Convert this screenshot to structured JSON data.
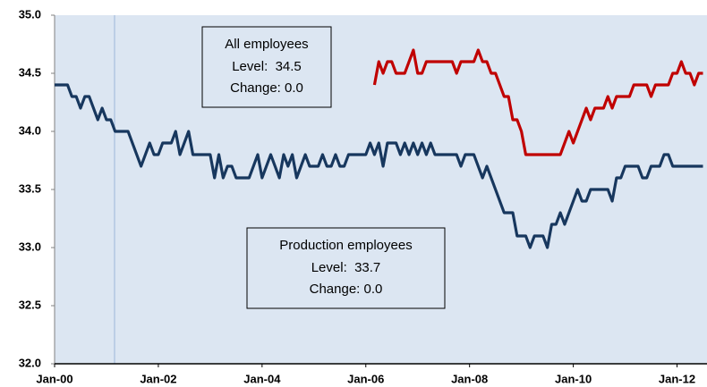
{
  "chart_data": {
    "type": "line",
    "categories": [
      "Jan-00",
      null,
      null,
      null,
      null,
      null,
      null,
      null,
      null,
      null,
      null,
      null,
      null,
      null,
      null,
      null,
      null,
      null,
      null,
      null,
      null,
      null,
      null,
      null,
      "Jan-02",
      null,
      null,
      null,
      null,
      null,
      null,
      null,
      null,
      null,
      null,
      null,
      null,
      null,
      null,
      null,
      null,
      null,
      null,
      null,
      null,
      null,
      null,
      null,
      "Jan-04",
      null,
      null,
      null,
      null,
      null,
      null,
      null,
      null,
      null,
      null,
      null,
      null,
      null,
      null,
      null,
      null,
      null,
      null,
      null,
      null,
      null,
      null,
      null,
      "Jan-06",
      null,
      null,
      null,
      null,
      null,
      null,
      null,
      null,
      null,
      null,
      null,
      null,
      null,
      null,
      null,
      null,
      null,
      null,
      null,
      null,
      null,
      null,
      null,
      "Jan-08",
      null,
      null,
      null,
      null,
      null,
      null,
      null,
      null,
      null,
      null,
      null,
      null,
      null,
      null,
      null,
      null,
      null,
      null,
      null,
      null,
      null,
      null,
      null,
      "Jan-10",
      null,
      null,
      null,
      null,
      null,
      null,
      null,
      null,
      null,
      null,
      null,
      null,
      null,
      null,
      null,
      null,
      null,
      null,
      null,
      null,
      null,
      null,
      null,
      "Jan-12",
      null,
      null,
      null,
      null,
      null,
      null
    ],
    "series": [
      {
        "name": "Production employees",
        "color": "#17375e",
        "values": [
          34.4,
          34.4,
          34.4,
          34.4,
          34.3,
          34.3,
          34.2,
          34.3,
          34.3,
          34.2,
          34.1,
          34.2,
          34.1,
          34.1,
          34.0,
          34.0,
          34.0,
          34.0,
          33.9,
          33.8,
          33.7,
          33.8,
          33.9,
          33.8,
          33.8,
          33.9,
          33.9,
          33.9,
          34.0,
          33.8,
          33.9,
          34.0,
          33.8,
          33.8,
          33.8,
          33.8,
          33.8,
          33.6,
          33.8,
          33.6,
          33.7,
          33.7,
          33.6,
          33.6,
          33.6,
          33.6,
          33.7,
          33.8,
          33.6,
          33.7,
          33.8,
          33.7,
          33.6,
          33.8,
          33.7,
          33.8,
          33.6,
          33.7,
          33.8,
          33.7,
          33.7,
          33.7,
          33.8,
          33.7,
          33.7,
          33.8,
          33.7,
          33.7,
          33.8,
          33.8,
          33.8,
          33.8,
          33.8,
          33.9,
          33.8,
          33.9,
          33.7,
          33.9,
          33.9,
          33.9,
          33.8,
          33.9,
          33.8,
          33.9,
          33.8,
          33.9,
          33.8,
          33.9,
          33.8,
          33.8,
          33.8,
          33.8,
          33.8,
          33.8,
          33.7,
          33.8,
          33.8,
          33.8,
          33.7,
          33.6,
          33.7,
          33.6,
          33.5,
          33.4,
          33.3,
          33.3,
          33.3,
          33.1,
          33.1,
          33.1,
          33.0,
          33.1,
          33.1,
          33.1,
          33.0,
          33.2,
          33.2,
          33.3,
          33.2,
          33.3,
          33.4,
          33.5,
          33.4,
          33.4,
          33.5,
          33.5,
          33.5,
          33.5,
          33.5,
          33.4,
          33.6,
          33.6,
          33.7,
          33.7,
          33.7,
          33.7,
          33.6,
          33.6,
          33.7,
          33.7,
          33.7,
          33.8,
          33.8,
          33.7,
          33.7,
          33.7,
          33.7,
          33.7,
          33.7,
          33.7,
          33.7
        ]
      },
      {
        "name": "All employees",
        "color": "#c00000",
        "values": [
          null,
          null,
          null,
          null,
          null,
          null,
          null,
          null,
          null,
          null,
          null,
          null,
          null,
          null,
          null,
          null,
          null,
          null,
          null,
          null,
          null,
          null,
          null,
          null,
          null,
          null,
          null,
          null,
          null,
          null,
          null,
          null,
          null,
          null,
          null,
          null,
          null,
          null,
          null,
          null,
          null,
          null,
          null,
          null,
          null,
          null,
          null,
          null,
          null,
          null,
          null,
          null,
          null,
          null,
          null,
          null,
          null,
          null,
          null,
          null,
          null,
          null,
          null,
          null,
          null,
          null,
          null,
          null,
          null,
          null,
          null,
          null,
          null,
          null,
          34.4,
          34.6,
          34.5,
          34.6,
          34.6,
          34.5,
          34.5,
          34.5,
          34.6,
          34.7,
          34.5,
          34.5,
          34.6,
          34.6,
          34.6,
          34.6,
          34.6,
          34.6,
          34.6,
          34.5,
          34.6,
          34.6,
          34.6,
          34.6,
          34.7,
          34.6,
          34.6,
          34.5,
          34.5,
          34.4,
          34.3,
          34.3,
          34.1,
          34.1,
          34.0,
          33.8,
          33.8,
          33.8,
          33.8,
          33.8,
          33.8,
          33.8,
          33.8,
          33.8,
          33.9,
          34.0,
          33.9,
          34.0,
          34.1,
          34.2,
          34.1,
          34.2,
          34.2,
          34.2,
          34.3,
          34.2,
          34.3,
          34.3,
          34.3,
          34.3,
          34.4,
          34.4,
          34.4,
          34.4,
          34.3,
          34.4,
          34.4,
          34.4,
          34.4,
          34.5,
          34.5,
          34.6,
          34.5,
          34.5,
          34.4,
          34.5,
          34.5
        ]
      }
    ],
    "annotations": [
      {
        "series": 1,
        "lines": [
          "Level:  34.5",
          "Change: 0.0"
        ]
      },
      {
        "series": 0,
        "lines": [
          "Level:  33.7",
          "Change: 0.0"
        ]
      }
    ],
    "ylim": [
      32,
      35
    ],
    "yticks": [
      {
        "value": 32,
        "label": "32.0"
      },
      {
        "value": 32.5,
        "label": "32.5"
      },
      {
        "value": 33,
        "label": "33.0"
      },
      {
        "value": 33.5,
        "label": "33.5"
      },
      {
        "value": 34,
        "label": "34.0"
      },
      {
        "value": 34.5,
        "label": "34.5"
      },
      {
        "value": 35,
        "label": "35.0"
      }
    ],
    "grid": false
  }
}
